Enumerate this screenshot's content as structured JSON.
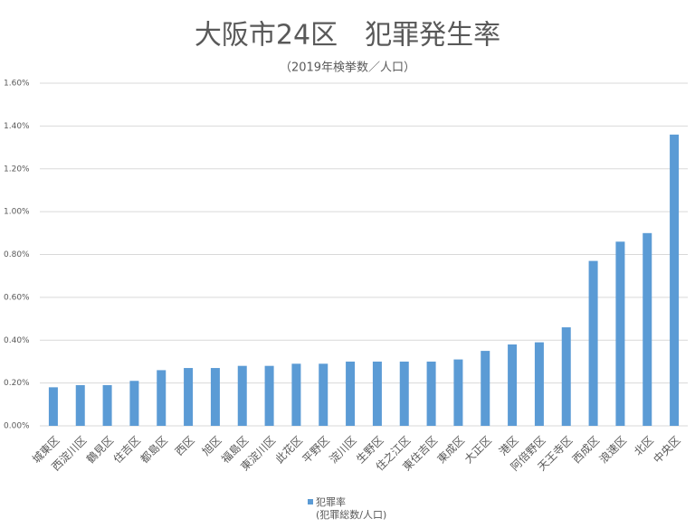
{
  "chart_data": {
    "type": "bar",
    "title": "大阪市24区　犯罪発生率",
    "subtitle": "（2019年検挙数／人口）",
    "categories": [
      "城東区",
      "西淀川区",
      "鶴見区",
      "住吉区",
      "都島区",
      "西区",
      "旭区",
      "福島区",
      "東淀川区",
      "此花区",
      "平野区",
      "淀川区",
      "生野区",
      "住之江区",
      "東住吉区",
      "東成区",
      "大正区",
      "港区",
      "阿倍野区",
      "天王寺区",
      "西成区",
      "浪速区",
      "北区",
      "中央区"
    ],
    "series": [
      {
        "name": "犯罪率",
        "color": "#5b9bd5",
        "values": [
          0.18,
          0.19,
          0.19,
          0.21,
          0.26,
          0.27,
          0.27,
          0.28,
          0.28,
          0.29,
          0.29,
          0.3,
          0.3,
          0.3,
          0.3,
          0.31,
          0.35,
          0.38,
          0.39,
          0.46,
          0.77,
          0.86,
          0.9,
          1.36
        ]
      }
    ],
    "legend_note": "(犯罪総数/人口)",
    "ylim": [
      0,
      1.6
    ],
    "yticks": [
      {
        "value": 0,
        "label": "0.00%"
      },
      {
        "value": 0.2,
        "label": "0.20%"
      },
      {
        "value": 0.4,
        "label": "0.40%"
      },
      {
        "value": 0.6,
        "label": "0.60%"
      },
      {
        "value": 0.8,
        "label": "0.80%"
      },
      {
        "value": 1.0,
        "label": "1.00%"
      },
      {
        "value": 1.2,
        "label": "1.20%"
      },
      {
        "value": 1.4,
        "label": "1.40%"
      },
      {
        "value": 1.6,
        "label": "1.60%"
      }
    ],
    "grid": true,
    "legend": "bottom"
  }
}
